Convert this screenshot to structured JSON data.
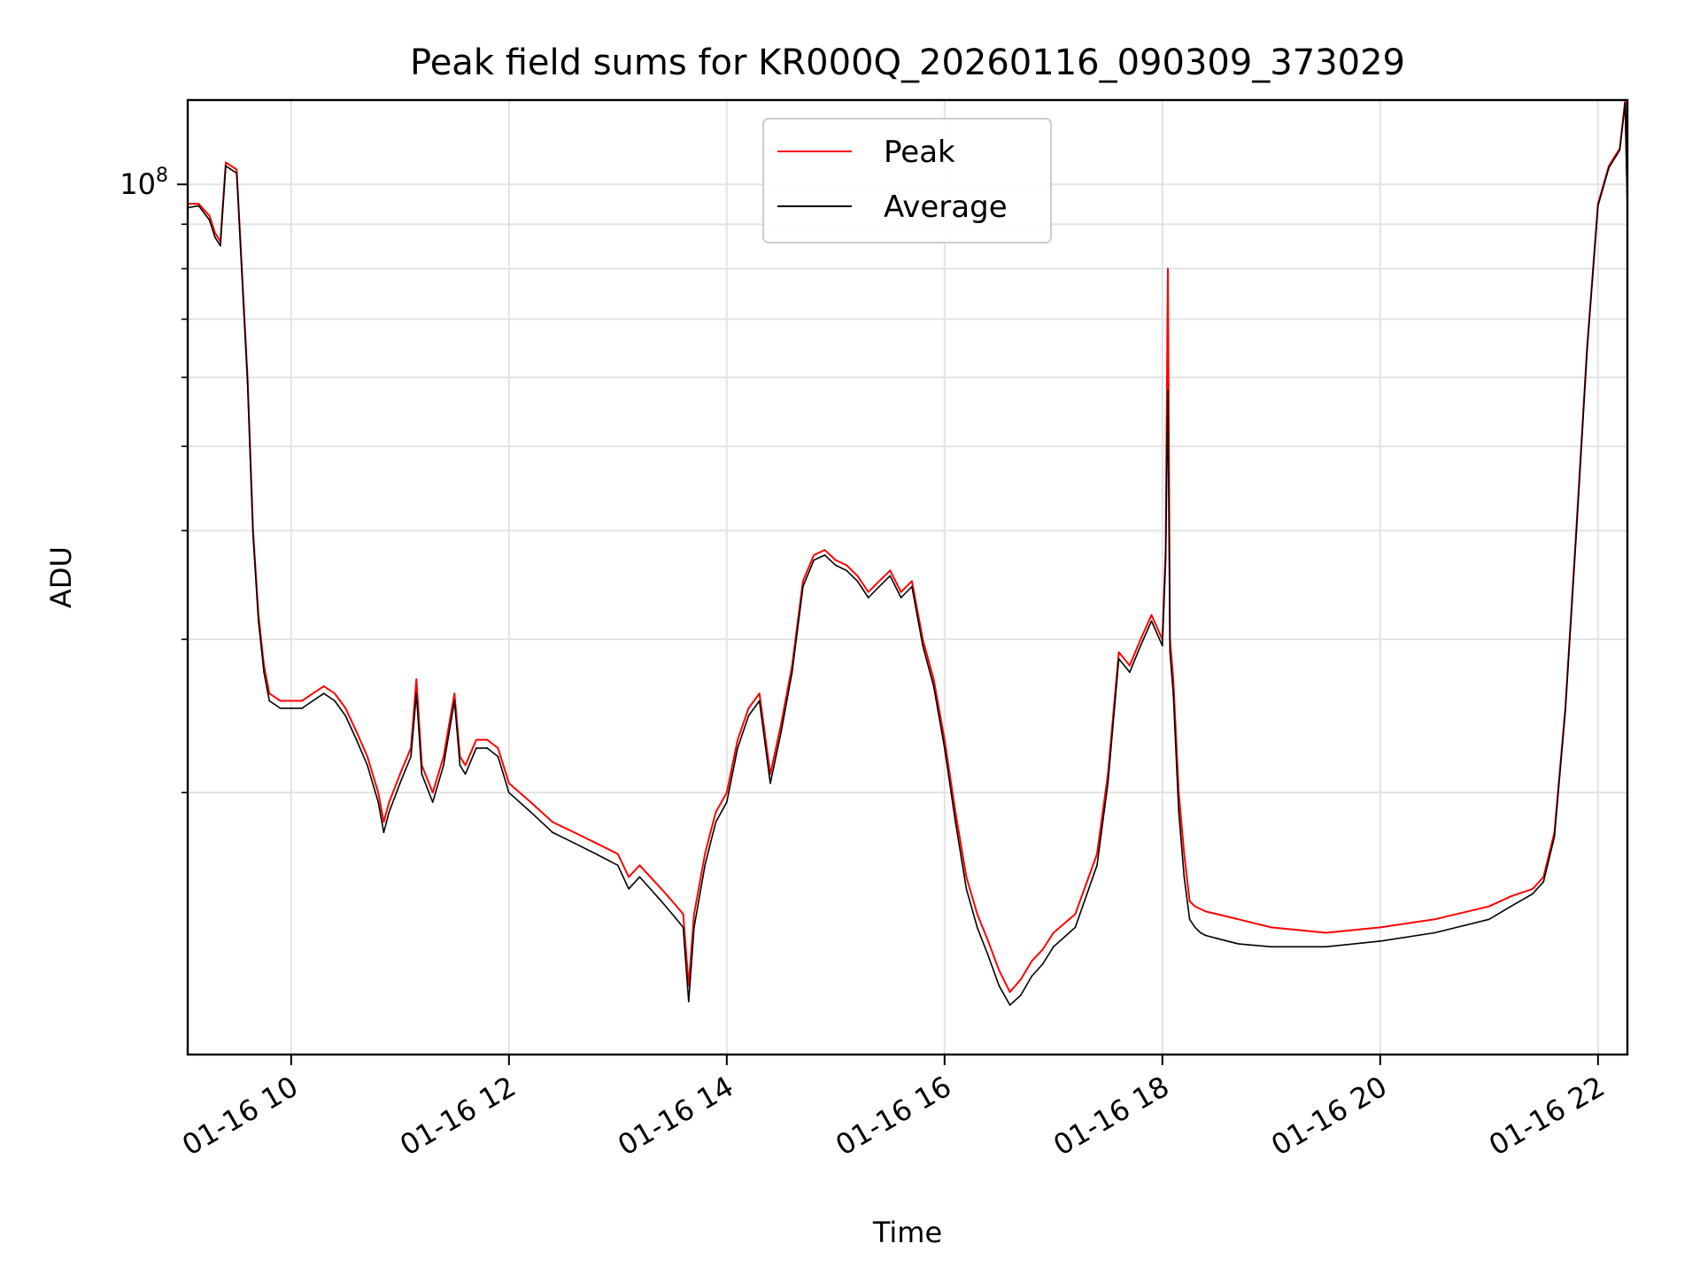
{
  "chart_data": {
    "type": "line",
    "title": "Peak field sums for KR000Q_20260116_090309_373029",
    "xlabel": "Time",
    "ylabel": "ADU",
    "yscale": "log",
    "xlim": [
      9.05,
      22.27
    ],
    "ylim": [
      10000000,
      125000000
    ],
    "grid": true,
    "legend_position": "top-center",
    "x_ticks": [
      {
        "value": 10,
        "label": "01-16 10"
      },
      {
        "value": 12,
        "label": "01-16 12"
      },
      {
        "value": 14,
        "label": "01-16 14"
      },
      {
        "value": 16,
        "label": "01-16 16"
      },
      {
        "value": 18,
        "label": "01-16 18"
      },
      {
        "value": 20,
        "label": "01-16 20"
      },
      {
        "value": 22,
        "label": "01-16 22"
      }
    ],
    "y_major_ticks": [
      {
        "value": 100000000,
        "base": "10",
        "exp": "8"
      }
    ],
    "y_minor_ticks": [
      20000000,
      30000000,
      40000000,
      50000000,
      60000000,
      70000000,
      80000000,
      90000000
    ],
    "series": [
      {
        "name": "Peak",
        "color": "#ff0000",
        "x": [
          9.05,
          9.15,
          9.25,
          9.3,
          9.35,
          9.4,
          9.5,
          9.6,
          9.65,
          9.7,
          9.75,
          9.8,
          9.9,
          10.0,
          10.1,
          10.2,
          10.3,
          10.4,
          10.5,
          10.6,
          10.7,
          10.8,
          10.85,
          10.9,
          11.0,
          11.1,
          11.15,
          11.2,
          11.3,
          11.4,
          11.5,
          11.55,
          11.6,
          11.7,
          11.8,
          11.9,
          12.0,
          12.2,
          12.4,
          12.6,
          12.8,
          13.0,
          13.1,
          13.2,
          13.4,
          13.5,
          13.6,
          13.65,
          13.7,
          13.8,
          13.85,
          13.9,
          14.0,
          14.1,
          14.2,
          14.3,
          14.4,
          14.5,
          14.6,
          14.7,
          14.8,
          14.9,
          15.0,
          15.1,
          15.2,
          15.3,
          15.4,
          15.5,
          15.6,
          15.7,
          15.8,
          15.9,
          16.0,
          16.1,
          16.2,
          16.3,
          16.4,
          16.5,
          16.6,
          16.7,
          16.8,
          16.9,
          17.0,
          17.2,
          17.4,
          17.5,
          17.6,
          17.7,
          17.8,
          17.9,
          18.0,
          18.03,
          18.05,
          18.07,
          18.1,
          18.15,
          18.2,
          18.25,
          18.3,
          18.35,
          18.4,
          18.5,
          18.7,
          19.0,
          19.5,
          20.0,
          20.5,
          21.0,
          21.2,
          21.4,
          21.5,
          21.6,
          21.7,
          21.8,
          21.9,
          22.0,
          22.1,
          22.2,
          22.25,
          22.27
        ],
        "y": [
          95000000,
          95000000,
          92000000,
          88000000,
          86000000,
          106000000,
          104000000,
          60000000,
          40000000,
          32000000,
          28000000,
          26000000,
          25500000,
          25500000,
          25500000,
          26000000,
          26500000,
          26000000,
          25000000,
          23500000,
          22000000,
          20000000,
          18500000,
          19500000,
          21000000,
          22500000,
          27000000,
          21500000,
          20000000,
          22000000,
          26000000,
          22000000,
          21500000,
          23000000,
          23000000,
          22500000,
          20500000,
          19500000,
          18500000,
          18000000,
          17500000,
          17000000,
          16000000,
          16500000,
          15500000,
          15000000,
          14500000,
          12000000,
          14500000,
          17000000,
          18000000,
          19000000,
          20000000,
          23000000,
          25000000,
          26000000,
          21000000,
          24000000,
          28000000,
          35000000,
          37500000,
          38000000,
          37000000,
          36500000,
          35500000,
          34000000,
          35000000,
          36000000,
          34000000,
          35000000,
          30000000,
          27000000,
          23000000,
          19000000,
          16000000,
          14500000,
          13500000,
          12500000,
          11800000,
          12200000,
          12800000,
          13200000,
          13800000,
          14500000,
          17000000,
          21000000,
          29000000,
          28000000,
          30000000,
          32000000,
          30000000,
          38000000,
          80000000,
          30000000,
          27000000,
          20000000,
          17000000,
          15000000,
          14800000,
          14700000,
          14600000,
          14500000,
          14300000,
          14000000,
          13800000,
          14000000,
          14300000,
          14800000,
          15200000,
          15500000,
          16000000,
          18000000,
          25000000,
          40000000,
          65000000,
          95000000,
          105000000,
          110000000,
          125000000,
          95000000
        ]
      },
      {
        "name": "Average",
        "color": "#000000",
        "x": [
          9.05,
          9.15,
          9.25,
          9.3,
          9.35,
          9.4,
          9.5,
          9.6,
          9.65,
          9.7,
          9.75,
          9.8,
          9.9,
          10.0,
          10.1,
          10.2,
          10.3,
          10.4,
          10.5,
          10.6,
          10.7,
          10.8,
          10.85,
          10.9,
          11.0,
          11.1,
          11.15,
          11.2,
          11.3,
          11.4,
          11.5,
          11.55,
          11.6,
          11.7,
          11.8,
          11.9,
          12.0,
          12.2,
          12.4,
          12.6,
          12.8,
          13.0,
          13.1,
          13.2,
          13.4,
          13.5,
          13.6,
          13.65,
          13.7,
          13.8,
          13.85,
          13.9,
          14.0,
          14.1,
          14.2,
          14.3,
          14.4,
          14.5,
          14.6,
          14.7,
          14.8,
          14.9,
          15.0,
          15.1,
          15.2,
          15.3,
          15.4,
          15.5,
          15.6,
          15.7,
          15.8,
          15.9,
          16.0,
          16.1,
          16.2,
          16.3,
          16.4,
          16.5,
          16.6,
          16.7,
          16.8,
          16.9,
          17.0,
          17.2,
          17.4,
          17.5,
          17.6,
          17.7,
          17.8,
          17.9,
          18.0,
          18.03,
          18.05,
          18.07,
          18.1,
          18.15,
          18.2,
          18.25,
          18.3,
          18.35,
          18.4,
          18.5,
          18.7,
          19.0,
          19.5,
          20.0,
          20.5,
          21.0,
          21.2,
          21.4,
          21.5,
          21.6,
          21.7,
          21.8,
          21.9,
          22.0,
          22.1,
          22.2,
          22.25,
          22.27
        ],
        "y": [
          94000000,
          94500000,
          91000000,
          87000000,
          85000000,
          105000000,
          103000000,
          59000000,
          39500000,
          31500000,
          27500000,
          25500000,
          25000000,
          25000000,
          25000000,
          25500000,
          26000000,
          25500000,
          24500000,
          23000000,
          21500000,
          19500000,
          18000000,
          19000000,
          20500000,
          22000000,
          26000000,
          21000000,
          19500000,
          21500000,
          25500000,
          21500000,
          21000000,
          22500000,
          22500000,
          22000000,
          20000000,
          19000000,
          18000000,
          17500000,
          17000000,
          16500000,
          15500000,
          16000000,
          15000000,
          14500000,
          14000000,
          11500000,
          14000000,
          16500000,
          17500000,
          18500000,
          19500000,
          22500000,
          24500000,
          25500000,
          20500000,
          23500000,
          27500000,
          34500000,
          37000000,
          37500000,
          36500000,
          36000000,
          35000000,
          33500000,
          34500000,
          35500000,
          33500000,
          34500000,
          29500000,
          26500000,
          22500000,
          18500000,
          15500000,
          14000000,
          13000000,
          12000000,
          11400000,
          11700000,
          12300000,
          12700000,
          13300000,
          14000000,
          16500000,
          20500000,
          28500000,
          27500000,
          29500000,
          31500000,
          29500000,
          37000000,
          58000000,
          29000000,
          26000000,
          19000000,
          16000000,
          14300000,
          14000000,
          13800000,
          13700000,
          13600000,
          13400000,
          13300000,
          13300000,
          13500000,
          13800000,
          14300000,
          14800000,
          15300000,
          15800000,
          17800000,
          24800000,
          39500000,
          64500000,
          94500000,
          104500000,
          109500000,
          124000000,
          94000000
        ]
      }
    ]
  }
}
